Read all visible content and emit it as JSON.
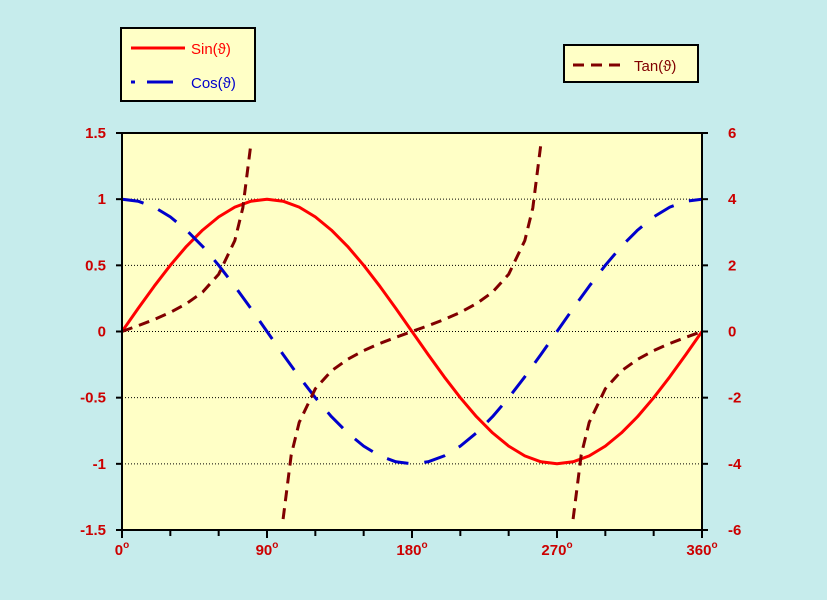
{
  "chart_data": {
    "type": "line",
    "x": [
      0,
      10,
      20,
      30,
      40,
      50,
      60,
      70,
      80,
      90,
      100,
      110,
      120,
      130,
      140,
      150,
      160,
      170,
      180,
      190,
      200,
      210,
      220,
      230,
      240,
      250,
      260,
      270,
      280,
      290,
      300,
      310,
      320,
      330,
      340,
      350,
      360
    ],
    "xtick_values": [
      0,
      90,
      180,
      270,
      360
    ],
    "xtick_labels": [
      "0",
      "90",
      "180",
      "270",
      "360"
    ],
    "xtick_superscript": "o",
    "xlim": [
      0,
      360
    ],
    "ylim": [
      -1.5,
      1.5
    ],
    "ytick_labels": [
      "1.5",
      "1",
      "0.5",
      "0",
      "-0.5",
      "-1",
      "-1.5"
    ],
    "ytick_values": [
      1.5,
      1,
      0.5,
      0,
      -0.5,
      -1,
      -1.5
    ],
    "y2lim": [
      -6,
      6
    ],
    "y2tick_labels": [
      "6",
      "4",
      "2",
      "0",
      "-2",
      "-4",
      "-6"
    ],
    "y2tick_values": [
      6,
      4,
      2,
      0,
      -2,
      -4,
      -6
    ],
    "grid": "horizontal dotted",
    "series": [
      {
        "name": "Sin(ϑ)",
        "axis": "left",
        "style": "solid",
        "color": "#ff0000",
        "x": [
          0,
          10,
          20,
          30,
          40,
          50,
          60,
          70,
          80,
          90,
          100,
          110,
          120,
          130,
          140,
          150,
          160,
          170,
          180,
          190,
          200,
          210,
          220,
          230,
          240,
          250,
          260,
          270,
          280,
          290,
          300,
          310,
          320,
          330,
          340,
          350,
          360
        ],
        "y": [
          0,
          0.174,
          0.342,
          0.5,
          0.643,
          0.766,
          0.866,
          0.94,
          0.985,
          1,
          0.985,
          0.94,
          0.866,
          0.766,
          0.643,
          0.5,
          0.342,
          0.174,
          0,
          -0.174,
          -0.342,
          -0.5,
          -0.643,
          -0.766,
          -0.866,
          -0.94,
          -0.985,
          -1,
          -0.985,
          -0.94,
          -0.866,
          -0.766,
          -0.643,
          -0.5,
          -0.342,
          -0.174,
          0
        ]
      },
      {
        "name": "Cos(ϑ)",
        "axis": "left",
        "style": "dashed",
        "color": "#0000cc",
        "x": [
          0,
          10,
          20,
          30,
          40,
          50,
          60,
          70,
          80,
          90,
          100,
          110,
          120,
          130,
          140,
          150,
          160,
          170,
          180,
          190,
          200,
          210,
          220,
          230,
          240,
          250,
          260,
          270,
          280,
          290,
          300,
          310,
          320,
          330,
          340,
          350,
          360
        ],
        "y": [
          1,
          0.985,
          0.94,
          0.866,
          0.766,
          0.643,
          0.5,
          0.342,
          0.174,
          0,
          -0.174,
          -0.342,
          -0.5,
          -0.643,
          -0.766,
          -0.866,
          -0.94,
          -0.985,
          -1,
          -0.985,
          -0.94,
          -0.866,
          -0.766,
          -0.643,
          -0.5,
          -0.342,
          -0.174,
          0,
          0.174,
          0.342,
          0.5,
          0.643,
          0.766,
          0.866,
          0.94,
          0.985,
          1
        ]
      },
      {
        "name": "Tan(ϑ)",
        "axis": "right",
        "style": "dashed",
        "color": "#800000",
        "segments": [
          {
            "x": [
              0,
              10,
              20,
              30,
              40,
              50,
              60,
              70,
              75,
              80
            ],
            "y": [
              0,
              0.176,
              0.364,
              0.577,
              0.839,
              1.192,
              1.732,
              2.747,
              3.732,
              5.671
            ]
          },
          {
            "x": [
              100,
              105,
              110,
              120,
              130,
              140,
              150,
              160,
              170,
              180,
              190,
              200,
              210,
              220,
              230,
              240,
              250,
              255,
              260
            ],
            "y": [
              -5.671,
              -3.732,
              -2.747,
              -1.732,
              -1.192,
              -0.839,
              -0.577,
              -0.364,
              -0.176,
              0,
              0.176,
              0.364,
              0.577,
              0.839,
              1.192,
              1.732,
              2.747,
              3.732,
              5.671
            ]
          },
          {
            "x": [
              280,
              285,
              290,
              300,
              310,
              320,
              330,
              340,
              350,
              360
            ],
            "y": [
              -5.671,
              -3.732,
              -2.747,
              -1.732,
              -1.192,
              -0.839,
              -0.577,
              -0.364,
              -0.176,
              0
            ]
          }
        ]
      }
    ]
  },
  "legend_left": {
    "items": [
      {
        "label": "Sin(ϑ)",
        "color": "#ff0000",
        "style": "solid"
      },
      {
        "label": "Cos(ϑ)",
        "color": "#0000cc",
        "style": "dashed"
      }
    ]
  },
  "legend_right": {
    "items": [
      {
        "label": "Tan(ϑ)",
        "color": "#800000",
        "style": "dashed"
      }
    ]
  },
  "colors": {
    "background": "#c6ecec",
    "plot_area": "#ffffc6",
    "legend_box": "#ffffc6",
    "tick_label": "#cc0000",
    "axis": "#000000"
  }
}
